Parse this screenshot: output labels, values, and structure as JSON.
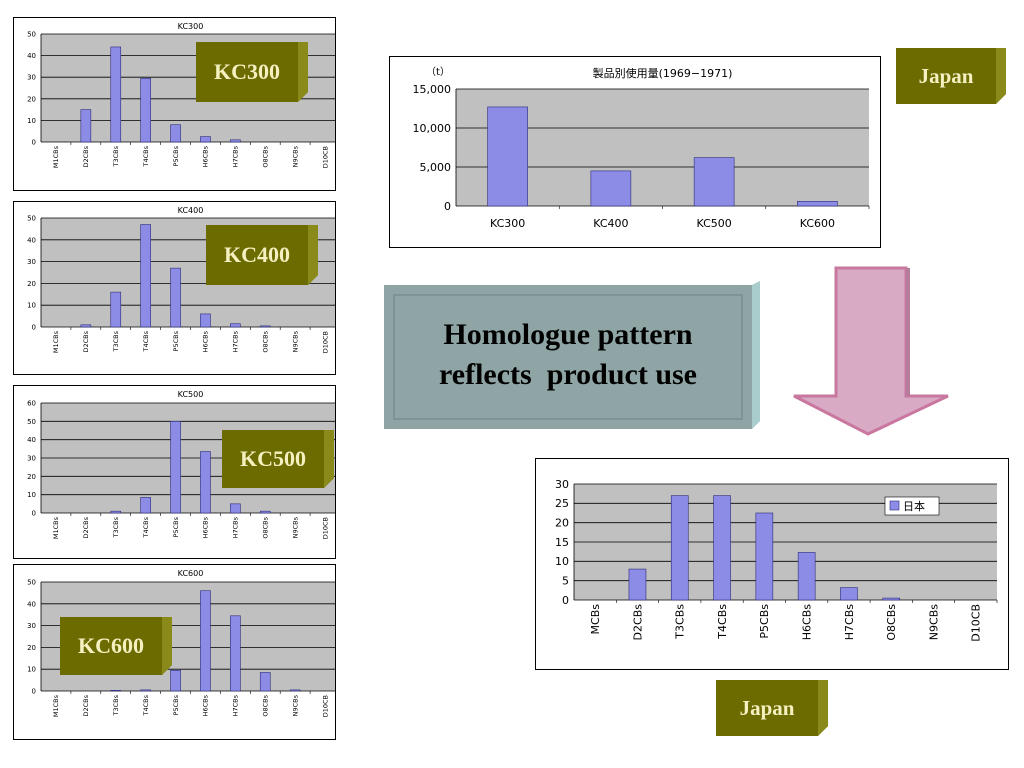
{
  "colors": {
    "plot_bg": "#c0c0c0",
    "bar": "#8c8ce6",
    "bar_edge": "#2b2b7a",
    "tag_bg": "#6b6b00",
    "tag_text": "#f5f0c0",
    "message_bg": "#8fa5a5",
    "arrow": "#d8aac3"
  },
  "labels": {
    "kc300": "KC300",
    "kc400": "KC400",
    "kc500": "KC500",
    "kc600": "KC600",
    "japan_top": "Japan",
    "japan_bottom": "Japan",
    "message_line1": "Homologue pattern",
    "message_line2": "reflects  product use"
  },
  "chart_data": [
    {
      "id": "kc300",
      "type": "bar",
      "title": "KC300",
      "categories": [
        "M1CBs",
        "D2CBs",
        "T3CBs",
        "T4CBs",
        "P5CBs",
        "H6CBs",
        "H7CBs",
        "O8CBs",
        "N9CBs",
        "D10CB"
      ],
      "values": [
        0,
        15,
        44,
        29.5,
        8,
        2.5,
        1,
        0,
        0,
        0
      ],
      "ylim": [
        0,
        50
      ],
      "yticks": [
        "0",
        "10",
        "20",
        "30",
        "40",
        "50"
      ]
    },
    {
      "id": "kc400",
      "type": "bar",
      "title": "KC400",
      "categories": [
        "M1CBs",
        "D2CBs",
        "T3CBs",
        "T4CBs",
        "P5CBs",
        "H6CBs",
        "H7CBs",
        "O8CBs",
        "N9CBs",
        "D10CB"
      ],
      "values": [
        0,
        1,
        16,
        47,
        27,
        6,
        1.5,
        0.5,
        0,
        0
      ],
      "ylim": [
        0,
        50
      ],
      "yticks": [
        "0",
        "10",
        "20",
        "30",
        "40",
        "50"
      ]
    },
    {
      "id": "kc500",
      "type": "bar",
      "title": "KC500",
      "categories": [
        "M1CBs",
        "D2CBs",
        "T3CBs",
        "T4CBs",
        "P5CBs",
        "H6CBs",
        "H7CBs",
        "O8CBs",
        "N9CBs",
        "D10CB"
      ],
      "values": [
        0,
        0,
        1,
        8.5,
        50,
        33.5,
        5,
        1,
        0,
        0
      ],
      "ylim": [
        0,
        60
      ],
      "yticks": [
        "0",
        "10",
        "20",
        "30",
        "40",
        "50",
        "60"
      ]
    },
    {
      "id": "kc600",
      "type": "bar",
      "title": "KC600",
      "categories": [
        "M1CBs",
        "D2CBs",
        "T3CBs",
        "T4CBs",
        "P5CBs",
        "H6CBs",
        "H7CBs",
        "O8CBs",
        "N9CBs",
        "D10CB"
      ],
      "values": [
        0,
        0,
        0.3,
        0.5,
        9.5,
        46,
        34.5,
        8.5,
        0.5,
        0
      ],
      "ylim": [
        0,
        50
      ],
      "yticks": [
        "0",
        "10",
        "20",
        "30",
        "40",
        "50"
      ]
    },
    {
      "id": "usage",
      "type": "bar",
      "title": "製品別使用量(1969−1971)",
      "ylabel": "（t）",
      "categories": [
        "KC300",
        "KC400",
        "KC500",
        "KC600"
      ],
      "values": [
        12700,
        4500,
        6200,
        600
      ],
      "ylim": [
        0,
        15000
      ],
      "yticks": [
        "0",
        "5,000",
        "10,000",
        "15,000"
      ]
    },
    {
      "id": "japan",
      "type": "bar",
      "title": "",
      "legend": "日本",
      "legend_position": "top-right",
      "categories": [
        "MCBs",
        "D2CBs",
        "T3CBs",
        "T4CBs",
        "P5CBs",
        "H6CBs",
        "H7CBs",
        "O8CBs",
        "N9CBs",
        "D10CB"
      ],
      "values": [
        0,
        8,
        27,
        27,
        22.5,
        12.3,
        3.2,
        0.5,
        0,
        0
      ],
      "ylim": [
        0,
        30
      ],
      "yticks": [
        "0",
        "5",
        "10",
        "15",
        "20",
        "25",
        "30"
      ]
    }
  ]
}
